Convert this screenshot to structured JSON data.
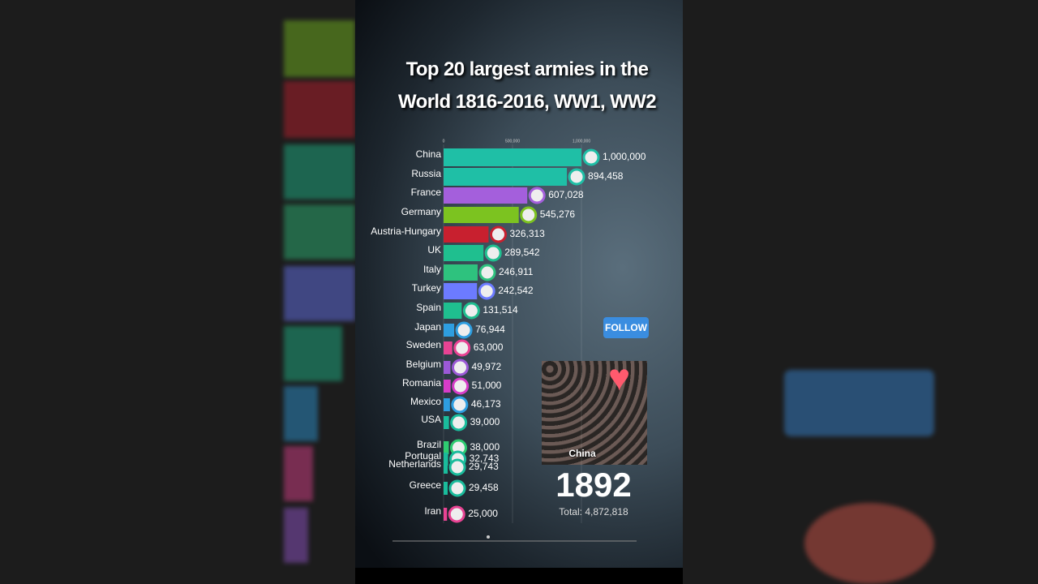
{
  "chart_data": {
    "type": "bar",
    "orientation": "horizontal",
    "title": "Top 20 largest armies in the World 1816-2016, WW1, WW2",
    "categories": [
      "China",
      "Russia",
      "France",
      "Germany",
      "Austria-Hungary",
      "UK",
      "Italy",
      "Turkey",
      "Spain",
      "Japan",
      "Sweden",
      "Belgium",
      "Romania",
      "Mexico",
      "USA",
      "Brazil",
      "Portugal",
      "Netherlands",
      "Greece",
      "Iran"
    ],
    "values": [
      1000000,
      894458,
      607028,
      545276,
      326313,
      289542,
      246911,
      242542,
      131514,
      76944,
      63000,
      49972,
      51000,
      46173,
      39000,
      38000,
      32743,
      29743,
      29458,
      25000
    ],
    "value_labels": [
      "1,000,000",
      "894,458",
      "607,028",
      "545,276",
      "326,313",
      "289,542",
      "246,911",
      "242,542",
      "131,514",
      "76,944",
      "63,000",
      "49,972",
      "51,000",
      "46,173",
      "39,000",
      "38,000",
      "32,743",
      "29,743",
      "29,458",
      "25,000"
    ],
    "colors": [
      "#1fbfa6",
      "#1fbfa6",
      "#a45fdc",
      "#7cc320",
      "#c8202f",
      "#1fbf8f",
      "#2ec27e",
      "#6c7bff",
      "#1fbf8f",
      "#2e9ee0",
      "#e84393",
      "#9b59d6",
      "#d63cc8",
      "#2e9ee0",
      "#1abc9c",
      "#2ecc71",
      "#1abc9c",
      "#1abc9c",
      "#1abc9c",
      "#e84393"
    ],
    "xlim": [
      0,
      1000000
    ],
    "xticks": [
      0,
      {
        "value": 500000,
        "label": "500,000"
      },
      {
        "value": 1000000,
        "label": "1,000,000"
      }
    ],
    "year": 1892,
    "total_label": "Total: 4,872,818"
  },
  "overlay": {
    "follow_button": "FOLLOW",
    "video_caption": "China"
  }
}
